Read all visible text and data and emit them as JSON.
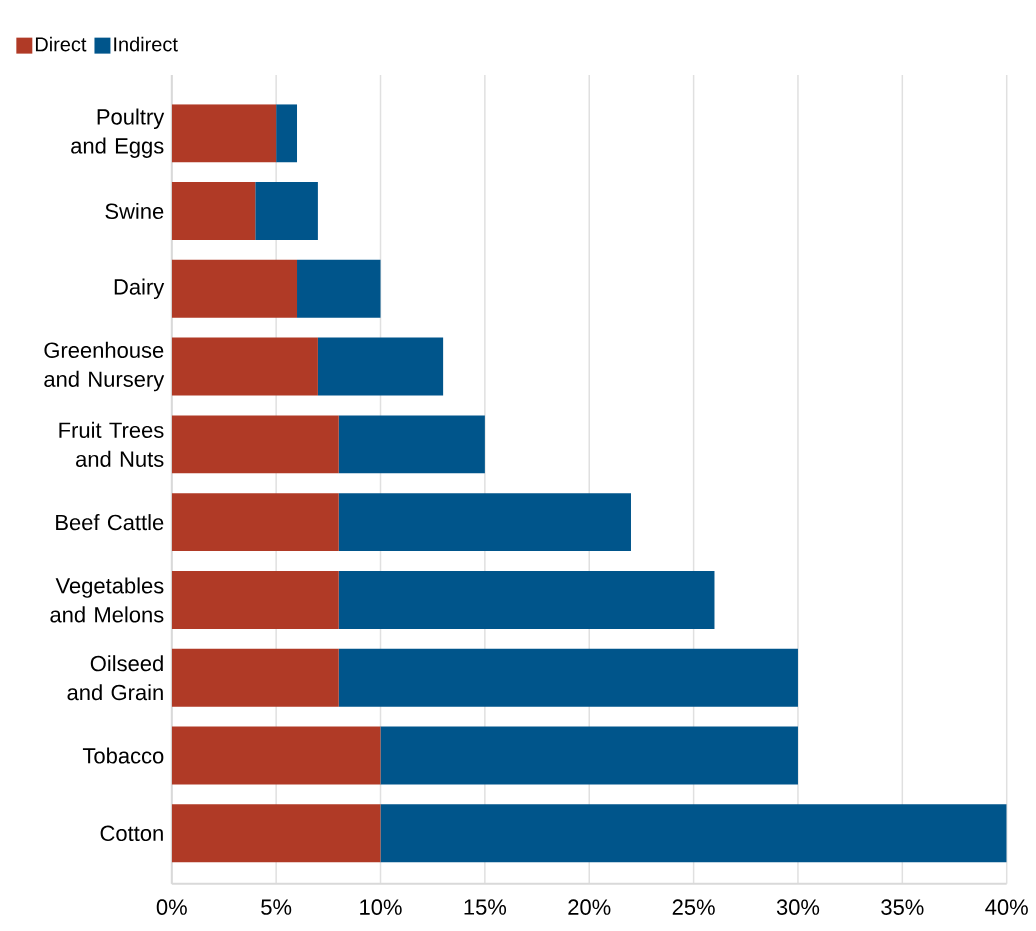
{
  "chart_data": {
    "type": "bar",
    "orientation": "horizontal",
    "stacked": true,
    "categories": [
      "Poultry and Eggs",
      "Swine",
      "Dairy",
      "Greenhouse and Nursery",
      "Fruit Trees and Nuts",
      "Beef Cattle",
      "Vegetables and Melons",
      "Oilseed and Grain",
      "Tobacco",
      "Cotton"
    ],
    "series": [
      {
        "name": "Direct",
        "color": "#b03a26",
        "values": [
          5,
          4,
          6,
          7,
          8,
          8,
          8,
          8,
          10,
          10
        ]
      },
      {
        "name": "Indirect",
        "color": "#00558b",
        "values": [
          1,
          3,
          4,
          6,
          7,
          14,
          18,
          22,
          20,
          30
        ]
      }
    ],
    "xlim": [
      0,
      40
    ],
    "xticks": [
      {
        "value": 0,
        "label": "0%"
      },
      {
        "value": 5,
        "label": "5%"
      },
      {
        "value": 10,
        "label": "10%"
      },
      {
        "value": 15,
        "label": "15%"
      },
      {
        "value": 20,
        "label": "20%"
      },
      {
        "value": 25,
        "label": "25%"
      },
      {
        "value": 30,
        "label": "30%"
      },
      {
        "value": 35,
        "label": "35%"
      },
      {
        "value": 40,
        "label": "40%"
      }
    ],
    "grid": "x",
    "legend": "top left"
  }
}
